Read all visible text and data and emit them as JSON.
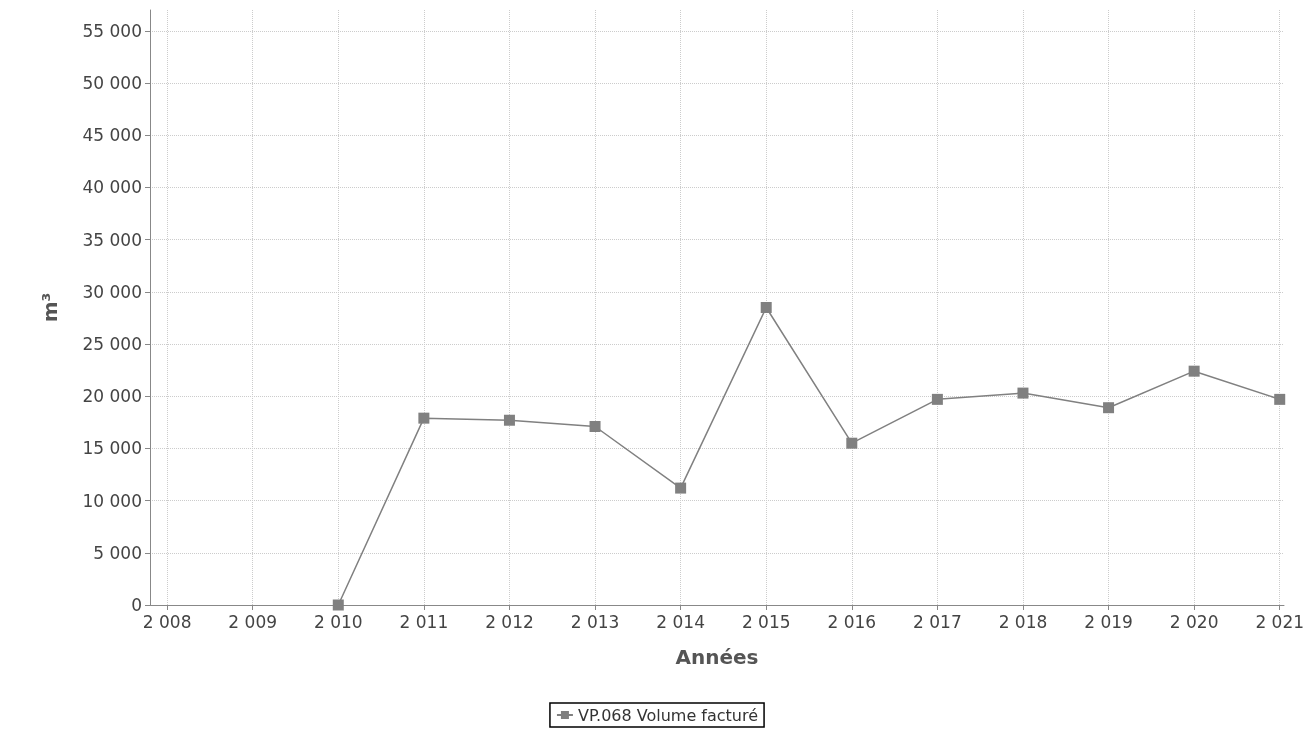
{
  "chart_data": {
    "type": "line",
    "xlabel": "Années",
    "ylabel": "m³",
    "x": [
      2010,
      2011,
      2012,
      2013,
      2014,
      2015,
      2016,
      2017,
      2018,
      2019,
      2020,
      2021
    ],
    "series": [
      {
        "name": "VP.068 Volume facturé",
        "color": "#808080",
        "values": [
          0,
          17900,
          17700,
          17100,
          11200,
          28500,
          15500,
          19700,
          20300,
          18900,
          22400,
          19700
        ]
      }
    ],
    "xlim": [
      2007.8,
      2021.05
    ],
    "xticks": [
      {
        "value": 2008,
        "label": "2 008"
      },
      {
        "value": 2009,
        "label": "2 009"
      },
      {
        "value": 2010,
        "label": "2 010"
      },
      {
        "value": 2011,
        "label": "2 011"
      },
      {
        "value": 2012,
        "label": "2 012"
      },
      {
        "value": 2013,
        "label": "2 013"
      },
      {
        "value": 2014,
        "label": "2 014"
      },
      {
        "value": 2015,
        "label": "2 015"
      },
      {
        "value": 2016,
        "label": "2 016"
      },
      {
        "value": 2017,
        "label": "2 017"
      },
      {
        "value": 2018,
        "label": "2 018"
      },
      {
        "value": 2019,
        "label": "2 019"
      },
      {
        "value": 2020,
        "label": "2 020"
      },
      {
        "value": 2021,
        "label": "2 021"
      }
    ],
    "ylim": [
      0,
      57000
    ],
    "yticks": [
      0,
      {
        "value": 5000,
        "label": "5 000"
      },
      {
        "value": 10000,
        "label": "10 000"
      },
      {
        "value": 15000,
        "label": "15 000"
      },
      {
        "value": 20000,
        "label": "20 000"
      },
      {
        "value": 25000,
        "label": "25 000"
      },
      {
        "value": 30000,
        "label": "30 000"
      },
      {
        "value": 35000,
        "label": "35 000"
      },
      {
        "value": 40000,
        "label": "40 000"
      },
      {
        "value": 45000,
        "label": "45 000"
      },
      {
        "value": 50000,
        "label": "50 000"
      },
      {
        "value": 55000,
        "label": "55 000"
      }
    ],
    "grid": true,
    "legend": "bottom",
    "marker": "square",
    "line_style": "solid"
  }
}
